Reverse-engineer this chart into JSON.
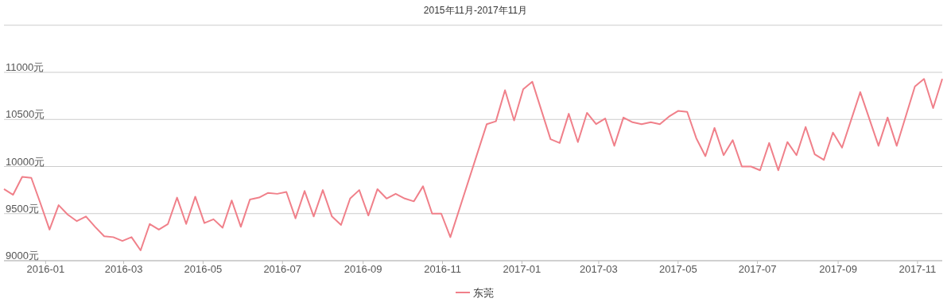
{
  "chart_data": {
    "type": "line",
    "title": "2015年11月-2017年11月",
    "x": [
      "2015-11-30",
      "2015-12-07",
      "2015-12-14",
      "2015-12-21",
      "2015-12-28",
      "2016-01-04",
      "2016-01-11",
      "2016-01-18",
      "2016-01-25",
      "2016-02-01",
      "2016-02-08",
      "2016-02-15",
      "2016-02-22",
      "2016-02-29",
      "2016-03-07",
      "2016-03-14",
      "2016-03-21",
      "2016-03-28",
      "2016-04-04",
      "2016-04-11",
      "2016-04-18",
      "2016-04-25",
      "2016-05-02",
      "2016-05-09",
      "2016-05-16",
      "2016-05-23",
      "2016-05-30",
      "2016-06-06",
      "2016-06-13",
      "2016-06-20",
      "2016-06-27",
      "2016-07-04",
      "2016-07-11",
      "2016-07-18",
      "2016-07-25",
      "2016-08-01",
      "2016-08-08",
      "2016-08-15",
      "2016-08-22",
      "2016-08-29",
      "2016-09-05",
      "2016-09-12",
      "2016-09-19",
      "2016-09-26",
      "2016-10-03",
      "2016-10-10",
      "2016-10-17",
      "2016-10-24",
      "2016-10-31",
      "2016-11-07",
      "2016-12-05",
      "2016-12-12",
      "2016-12-19",
      "2016-12-26",
      "2017-01-02",
      "2017-01-09",
      "2017-01-23",
      "2017-01-30",
      "2017-02-06",
      "2017-02-13",
      "2017-02-20",
      "2017-02-27",
      "2017-03-06",
      "2017-03-13",
      "2017-03-20",
      "2017-03-27",
      "2017-04-03",
      "2017-04-10",
      "2017-04-17",
      "2017-04-24",
      "2017-05-01",
      "2017-05-08",
      "2017-05-15",
      "2017-05-22",
      "2017-05-29",
      "2017-06-05",
      "2017-06-12",
      "2017-06-19",
      "2017-06-26",
      "2017-07-03",
      "2017-07-10",
      "2017-07-17",
      "2017-07-24",
      "2017-07-31",
      "2017-08-07",
      "2017-08-14",
      "2017-08-21",
      "2017-08-28",
      "2017-09-04",
      "2017-09-18",
      "2017-10-02",
      "2017-10-09",
      "2017-10-16",
      "2017-10-30",
      "2017-11-06",
      "2017-11-13",
      "2017-11-20"
    ],
    "series": [
      {
        "name": "东莞",
        "color": "#f0808a",
        "values": [
          9760,
          9700,
          9890,
          9880,
          9610,
          9330,
          9590,
          9490,
          9420,
          9470,
          9360,
          9260,
          9250,
          9210,
          9250,
          9110,
          9390,
          9330,
          9390,
          9670,
          9390,
          9680,
          9400,
          9440,
          9350,
          9640,
          9360,
          9650,
          9670,
          9720,
          9710,
          9730,
          9450,
          9740,
          9470,
          9750,
          9470,
          9380,
          9660,
          9750,
          9480,
          9760,
          9660,
          9710,
          9660,
          9630,
          9790,
          9500,
          9500,
          9250,
          10450,
          10480,
          10810,
          10490,
          10820,
          10900,
          10290,
          10250,
          10560,
          10260,
          10570,
          10450,
          10510,
          10220,
          10520,
          10470,
          10450,
          10470,
          10450,
          10530,
          10590,
          10580,
          10300,
          10110,
          10410,
          10120,
          10280,
          10000,
          10000,
          9960,
          10250,
          9960,
          10260,
          10120,
          10420,
          10130,
          10070,
          10360,
          10200,
          10790,
          10220,
          10520,
          10220,
          10850,
          10930,
          10620,
          10930
        ]
      }
    ],
    "xlim": [
      "2015-11-30",
      "2017-11-20"
    ],
    "xticks": [
      "2016-01",
      "2016-03",
      "2016-05",
      "2016-07",
      "2016-09",
      "2016-11",
      "2017-01",
      "2017-03",
      "2017-05",
      "2017-07",
      "2017-09",
      "2017-11"
    ],
    "ylim": [
      9000,
      11500
    ],
    "yticks": [
      {
        "value": 9000,
        "label": "9000元"
      },
      {
        "value": 9500,
        "label": "9500元"
      },
      {
        "value": 10000,
        "label": "10000元"
      },
      {
        "value": 10500,
        "label": "10500元"
      },
      {
        "value": 11000,
        "label": "11000元"
      },
      {
        "value": 11500,
        "label": null
      }
    ],
    "grid": "y",
    "legend": "bottom",
    "marker": "none",
    "line_style": "solid"
  }
}
